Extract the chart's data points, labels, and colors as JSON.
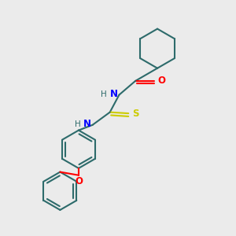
{
  "background_color": "#ebebeb",
  "bond_color": "#2d6b6b",
  "N_color": "#0000ff",
  "O_color": "#ff0000",
  "S_color": "#cccc00",
  "line_width": 1.5,
  "figsize": [
    3.0,
    3.0
  ],
  "dpi": 100,
  "xlim": [
    0,
    10
  ],
  "ylim": [
    0,
    10
  ]
}
